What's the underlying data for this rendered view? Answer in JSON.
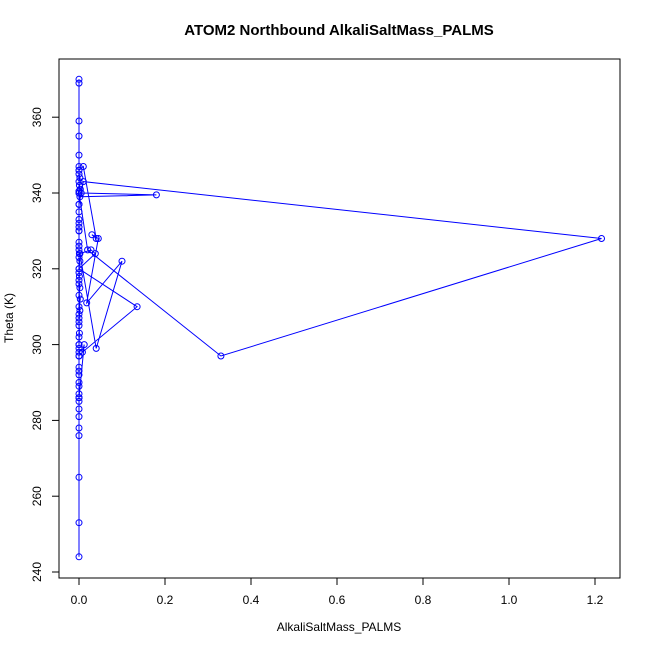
{
  "chart_data": {
    "type": "line",
    "title": "ATOM2 Northbound AlkaliSaltMass_PALMS",
    "xlabel": "AlkaliSaltMass_PALMS",
    "ylabel": "Theta (K)",
    "xlim": [
      0,
      1.2
    ],
    "ylim": [
      240,
      370
    ],
    "x_ticks": [
      "0.0",
      "0.2",
      "0.4",
      "0.6",
      "0.8",
      "1.0",
      "1.2"
    ],
    "y_ticks": [
      "240",
      "260",
      "280",
      "300",
      "320",
      "340",
      "360"
    ],
    "markers": "open-circle",
    "grid": false,
    "legend": false,
    "colors": {
      "series": "#0000ff",
      "axes": "#000000"
    },
    "series": [
      {
        "x": [
          0,
          0,
          0,
          0,
          0,
          0,
          0,
          0,
          0,
          0,
          0,
          0,
          0,
          0,
          0,
          0,
          0,
          0,
          0,
          0,
          0,
          0,
          0.003,
          0,
          0.002,
          0,
          0.001,
          0,
          0.002,
          0,
          0.001,
          0,
          0,
          0,
          0,
          0,
          0,
          0,
          0.002,
          0.18,
          0.005,
          0,
          0.003,
          0.001,
          0,
          0.002,
          0,
          0,
          0.01,
          0.04,
          0.03,
          0.045,
          0.018,
          0.1,
          0.04,
          0.002,
          0.028,
          0.038,
          0,
          0.135,
          0.008,
          0.012,
          0,
          0,
          0.02,
          0.33,
          1.215,
          0.01,
          0,
          0,
          0,
          0,
          0,
          0,
          0.002,
          0,
          0.001,
          0,
          0,
          0,
          0,
          0,
          0,
          0,
          0,
          0,
          0,
          0,
          0,
          0
        ],
        "y": [
          244,
          253,
          265,
          276,
          278,
          281,
          283,
          285,
          286,
          287,
          290,
          292,
          294,
          297,
          298,
          299,
          300,
          302,
          305,
          307,
          308,
          310,
          312,
          313,
          315,
          317,
          318,
          320,
          322,
          323,
          324,
          325,
          327,
          330,
          331,
          333,
          335,
          337,
          339,
          339.5,
          340,
          340.5,
          341,
          342,
          343,
          344,
          345,
          346,
          347,
          328,
          329,
          328,
          311,
          322,
          299,
          324,
          325,
          324,
          320,
          310,
          298,
          300,
          286,
          340,
          325,
          297,
          328,
          343,
          337,
          332,
          330,
          326,
          319,
          316,
          309,
          306,
          303,
          300,
          297,
          293,
          289,
          286,
          340,
          346,
          347,
          350,
          355,
          359,
          369,
          370
        ]
      }
    ]
  }
}
